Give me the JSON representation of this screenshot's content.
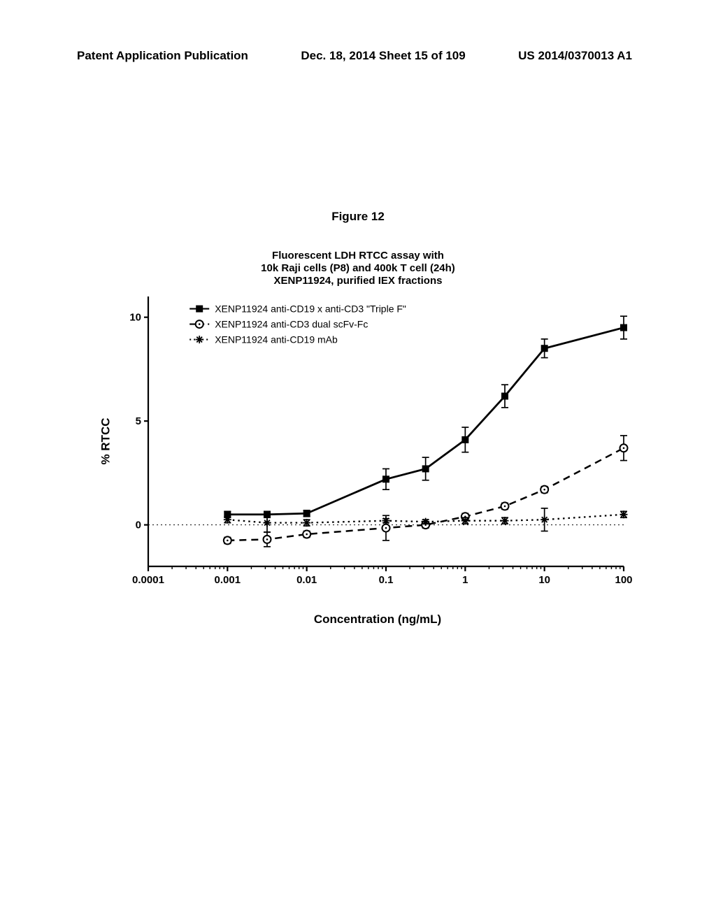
{
  "header": {
    "left": "Patent Application Publication",
    "center": "Dec. 18, 2014  Sheet 15 of 109",
    "right": "US 2014/0370013 A1"
  },
  "figure_label": "Figure 12",
  "chart": {
    "type": "line",
    "title_line1": "Fluorescent LDH RTCC assay with",
    "title_line2": "10k Raji cells (P8) and 400k T cell (24h)",
    "title_line3": "XENP11924, purified IEX fractions",
    "xlabel": "Concentration (ng/mL)",
    "ylabel": "% RTCC",
    "xscale": "log",
    "xlim_log": [
      -4,
      2
    ],
    "ylim": [
      -2,
      11
    ],
    "xtick_labels": [
      "0.0001",
      "0.001",
      "0.01",
      "0.1",
      "1",
      "10",
      "100"
    ],
    "xtick_log_positions": [
      -4,
      -3,
      -2,
      -1,
      0,
      1,
      2
    ],
    "ytick_values": [
      0,
      5,
      10
    ],
    "line_color": "#000000",
    "axis_color": "#000000",
    "background_color": "#ffffff",
    "axis_width": 2.2,
    "series": [
      {
        "name": "XENP11924 anti-CD19 x anti-CD3 \"Triple F\"",
        "marker": "square-filled",
        "dash": "solid",
        "line_width": 2.8,
        "x_log": [
          -3,
          -2.5,
          -2,
          -1,
          -0.5,
          0,
          0.5,
          1,
          2
        ],
        "y": [
          0.5,
          0.5,
          0.55,
          2.2,
          2.7,
          4.1,
          6.2,
          8.5,
          9.5
        ],
        "err": [
          0.15,
          0.15,
          0.15,
          0.5,
          0.55,
          0.6,
          0.55,
          0.45,
          0.55
        ]
      },
      {
        "name": "XENP11924 anti-CD3 dual scFv-Fc",
        "marker": "circle-open",
        "dash": "dashed",
        "line_width": 2.5,
        "x_log": [
          -3,
          -2.5,
          -2,
          -1,
          -0.5,
          0,
          0.5,
          1,
          2
        ],
        "y": [
          -0.75,
          -0.7,
          -0.45,
          -0.15,
          0.0,
          0.4,
          0.9,
          1.7,
          3.7
        ],
        "err": [
          0.15,
          0.35,
          0.15,
          0.6,
          0.15,
          0.15,
          0.15,
          0.15,
          0.6
        ]
      },
      {
        "name": "XENP11924 anti-CD19 mAb",
        "marker": "asterisk",
        "dash": "dotted",
        "line_width": 2.3,
        "x_log": [
          -3,
          -2.5,
          -2,
          -1,
          -0.5,
          0,
          0.5,
          1,
          2
        ],
        "y": [
          0.25,
          0.1,
          0.1,
          0.2,
          0.15,
          0.2,
          0.2,
          0.25,
          0.5
        ],
        "err": [
          0.15,
          0.45,
          0.15,
          0.1,
          0.1,
          0.15,
          0.15,
          0.55,
          0.15
        ]
      }
    ],
    "legend": {
      "x": 0.09,
      "y_top": 0.97,
      "fontsize": 14
    },
    "zero_reference_line": true
  }
}
